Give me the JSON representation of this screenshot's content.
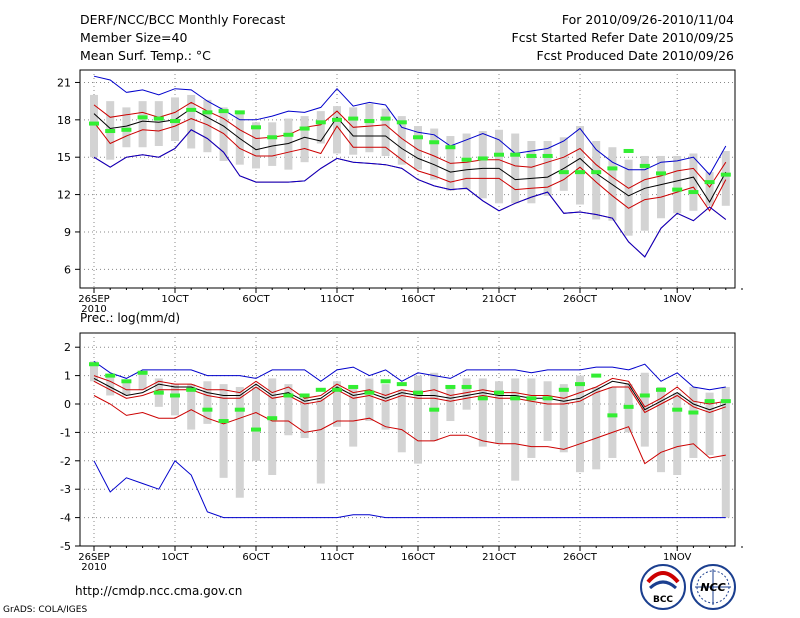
{
  "header": {
    "title": "DERF/NCC/BCC Monthly Forecast",
    "member_size": "Member Size=40",
    "variable": "Mean Surf. Temp.: °C",
    "period": "For 2010/09/26-2010/11/04",
    "start_date": "Fcst Started Refer Date 2010/09/25",
    "produced_date": "Fcst Produced Date 2010/09/26"
  },
  "footer": {
    "url": "http://cmdp.ncc.cma.gov.cn",
    "grads": "GrADS: COLA/IGES",
    "logo_bcc": "BCC",
    "logo_ncc": "NCC"
  },
  "colors": {
    "box": "#d3d3d3",
    "mean": "#000000",
    "spread": "#cc0000",
    "extreme": "#0000cc",
    "clim": "#33ee33",
    "grid": "#888888"
  },
  "chart_data": [
    {
      "type": "box",
      "name": "temperature",
      "title": "Mean Surf. Temp.: °C",
      "xlabel": "",
      "ylabel": "",
      "ylim": [
        4.5,
        22
      ],
      "yticks": [
        6,
        9,
        12,
        15,
        18,
        21
      ],
      "day0": 0,
      "xmax": 40,
      "xticks": [
        {
          "day": 0,
          "label": "26SEP",
          "sub": "2010"
        },
        {
          "day": 5,
          "label": "1OCT"
        },
        {
          "day": 10,
          "label": "6OCT"
        },
        {
          "day": 15,
          "label": "11OCT"
        },
        {
          "day": 20,
          "label": "16OCT"
        },
        {
          "day": 25,
          "label": "21OCT"
        },
        {
          "day": 30,
          "label": "26OCT"
        },
        {
          "day": 36,
          "label": "1NOV"
        }
      ],
      "grid": true,
      "series": [
        {
          "name": "box_high",
          "values": [
            20,
            19.5,
            19,
            19.5,
            19.5,
            19.8,
            20,
            19.6,
            19,
            18.5,
            17.8,
            17.8,
            18.1,
            18.3,
            18.7,
            19.1,
            19,
            19.3,
            18.9,
            18.3,
            17.5,
            17.3,
            16.7,
            16.9,
            17.1,
            17.2,
            16.9,
            16.3,
            16.3,
            16.6,
            17.5,
            16.3,
            15.8,
            14.8,
            15.1,
            15.1,
            15.1,
            15.3,
            13.8,
            15.5
          ]
        },
        {
          "name": "box_low",
          "values": [
            15,
            14.8,
            15.8,
            15.8,
            15.9,
            16.3,
            15.7,
            15.4,
            14.7,
            14.4,
            14.1,
            14.3,
            14,
            14.6,
            16.1,
            15.3,
            15.2,
            15.4,
            15.1,
            14.4,
            14,
            13.2,
            12.3,
            12.4,
            11.7,
            11.3,
            11.3,
            11.3,
            11.9,
            12.3,
            11.2,
            10,
            9.9,
            8.7,
            9.1,
            10.1,
            10.5,
            10.7,
            11.1,
            11.1
          ]
        },
        {
          "name": "ens_max",
          "values": [
            21.5,
            21.2,
            20.2,
            20.4,
            20,
            20.5,
            20.4,
            19.5,
            18.8,
            18,
            18,
            18.3,
            18.7,
            18.6,
            19,
            20.5,
            19.1,
            19.4,
            19.2,
            17.4,
            17,
            16.8,
            15.9,
            16.4,
            16.9,
            16.4,
            15.3,
            15.5,
            15.7,
            16.3,
            17.3,
            15.6,
            14.6,
            14,
            14,
            14.6,
            14.7,
            15,
            13.6,
            15.9
          ]
        },
        {
          "name": "spread_high",
          "values": [
            19.2,
            18.2,
            18.4,
            18.6,
            18.2,
            18.6,
            19.4,
            18.7,
            18.1,
            17.2,
            16.5,
            16.6,
            16.8,
            17.4,
            17.6,
            18.7,
            17.4,
            17.5,
            17.6,
            16.5,
            15.6,
            15.1,
            14.5,
            14.6,
            14.8,
            14.8,
            14.3,
            14.2,
            14.6,
            15,
            15.7,
            14.4,
            13.4,
            12.5,
            13.2,
            13.5,
            13.9,
            14.1,
            12.6,
            14.6
          ]
        },
        {
          "name": "ens_mean",
          "values": [
            18.5,
            17.3,
            17.5,
            17.9,
            17.8,
            18,
            18.9,
            18.2,
            17.5,
            16.5,
            15.6,
            15.9,
            16.1,
            16.6,
            16.3,
            18.2,
            16.7,
            16.7,
            16.7,
            15.7,
            14.9,
            14.4,
            13.8,
            14,
            14.1,
            14.1,
            13.2,
            13.3,
            13.4,
            14.1,
            14.9,
            13.7,
            12.8,
            11.9,
            12.5,
            12.8,
            13.1,
            13.4,
            11.4,
            13.8
          ]
        },
        {
          "name": "spread_low",
          "values": [
            17.8,
            16.1,
            16.7,
            17.2,
            17.1,
            17.5,
            18.1,
            17.6,
            16.9,
            15.7,
            15.1,
            15.1,
            15.4,
            15.7,
            15.3,
            17.5,
            15.8,
            15.8,
            15.8,
            14.8,
            13.9,
            13.5,
            13,
            13.3,
            13.3,
            13.3,
            12.4,
            12.5,
            12.6,
            13.2,
            14.2,
            13,
            11.9,
            10.9,
            11.6,
            11.8,
            12.2,
            12.6,
            10.7,
            13.2
          ]
        },
        {
          "name": "ens_min",
          "values": [
            15,
            14.2,
            15,
            15.2,
            15,
            15.7,
            17.2,
            16.5,
            15.4,
            13.5,
            13,
            13,
            13,
            13.1,
            14.1,
            14.9,
            14.6,
            14.5,
            14.4,
            14.1,
            13.2,
            12.7,
            12.4,
            12.5,
            11.5,
            10.7,
            11.3,
            11.8,
            12.2,
            10.5,
            10.6,
            10.4,
            10.1,
            8.2,
            7,
            9.3,
            10.5,
            9.9,
            11,
            10
          ]
        },
        {
          "name": "climate",
          "values": [
            17.7,
            17.1,
            17.2,
            18.2,
            18.1,
            17.9,
            18.8,
            18.6,
            18.7,
            18.6,
            17.4,
            16.6,
            16.8,
            17.3,
            17.8,
            18,
            18.1,
            17.9,
            18.1,
            17.8,
            16.6,
            16.2,
            15.8,
            14.8,
            14.9,
            15.2,
            15.2,
            15.1,
            15.1,
            13.8,
            13.8,
            13.8,
            14.1,
            15.5,
            14.3,
            13.7,
            12.4,
            12.2,
            13,
            13.6
          ]
        }
      ]
    },
    {
      "type": "box",
      "name": "precipitation",
      "title": "Prec.: log(mm/d)",
      "xlabel": "",
      "ylabel": "",
      "ylim": [
        -5,
        2.5
      ],
      "yticks": [
        -5,
        -4,
        -3,
        -2,
        -1,
        0,
        1,
        2
      ],
      "day0": 0,
      "xmax": 40,
      "xticks": [
        {
          "day": 0,
          "label": "26SEP",
          "sub": "2010"
        },
        {
          "day": 5,
          "label": "1OCT"
        },
        {
          "day": 10,
          "label": "6OCT"
        },
        {
          "day": 15,
          "label": "11OCT"
        },
        {
          "day": 20,
          "label": "16OCT"
        },
        {
          "day": 25,
          "label": "21OCT"
        },
        {
          "day": 30,
          "label": "26OCT"
        },
        {
          "day": 36,
          "label": "1NOV"
        }
      ],
      "grid": true,
      "series": [
        {
          "name": "box_high",
          "values": [
            1.5,
            1,
            0.8,
            1.1,
            0.9,
            0.7,
            0.7,
            0.8,
            0.7,
            0.6,
            0.6,
            0.9,
            0.7,
            0.2,
            0.2,
            0.8,
            0.6,
            0.9,
            0.7,
            0.5,
            1,
            1.1,
            0.6,
            0.9,
            0.9,
            0.8,
            0.9,
            0.9,
            0.8,
            0.7,
            1,
            0.6,
            0.6,
            0.7,
            1.1,
            0.6,
            0.4,
            0.6,
            0.4,
            0.6
          ]
        },
        {
          "name": "box_low",
          "values": [
            0.8,
            0.3,
            0.3,
            0.5,
            -0.1,
            -0.4,
            -0.9,
            -0.7,
            -2.6,
            -3.3,
            -2,
            -2.5,
            -1.1,
            -1.2,
            -2.8,
            -0.8,
            -1.5,
            -0.6,
            -0.9,
            -1.7,
            -2.1,
            -1.3,
            -0.6,
            -0.2,
            -1.5,
            -1.4,
            -2.7,
            -1.9,
            -1.3,
            -1.7,
            -2.4,
            -2.3,
            -1.9,
            -1,
            -1.5,
            -2.4,
            -2.5,
            -1.9,
            -1.8,
            -4
          ]
        },
        {
          "name": "ens_max",
          "values": [
            1.5,
            1.1,
            0.9,
            1.2,
            1.2,
            1.2,
            1.2,
            1,
            1,
            1,
            0.9,
            1.2,
            1.2,
            1.2,
            0.8,
            1.2,
            1.3,
            1,
            1.2,
            0.8,
            1.1,
            1,
            0.9,
            1.2,
            1.2,
            1.2,
            1.2,
            1.1,
            1.2,
            1.2,
            1.2,
            1.3,
            1.3,
            1.2,
            1.4,
            0.8,
            1.1,
            0.6,
            0.5,
            0.6
          ]
        },
        {
          "name": "spread_high",
          "values": [
            1,
            0.8,
            0.5,
            0.5,
            0.8,
            0.7,
            0.7,
            0.5,
            0.5,
            0.4,
            0.8,
            0.4,
            0.6,
            0.2,
            0.3,
            0.7,
            0.4,
            0.5,
            0.3,
            0.5,
            0.4,
            0.5,
            0.3,
            0.4,
            0.5,
            0.4,
            0.4,
            0.3,
            0.3,
            0.2,
            0.4,
            0.6,
            0.9,
            0.8,
            -0.1,
            0.2,
            0.6,
            0.1,
            0,
            0.1
          ]
        },
        {
          "name": "ens_mean",
          "values": [
            0.9,
            0.6,
            0.3,
            0.4,
            0.7,
            0.6,
            0.6,
            0.4,
            0.3,
            0.3,
            0.7,
            0.3,
            0.4,
            0.1,
            0.2,
            0.6,
            0.3,
            0.4,
            0.2,
            0.4,
            0.3,
            0.3,
            0.2,
            0.3,
            0.4,
            0.3,
            0.3,
            0.2,
            0.2,
            0.1,
            0.2,
            0.5,
            0.8,
            0.7,
            -0.2,
            0.1,
            0.4,
            0,
            -0.2,
            0
          ]
        },
        {
          "name": "spread_low",
          "values": [
            0.8,
            0.5,
            0.2,
            0.3,
            0.5,
            0.5,
            0.5,
            0.3,
            0.2,
            0.2,
            0.6,
            0.2,
            0.3,
            0,
            0.1,
            0.5,
            0.2,
            0.3,
            0.1,
            0.3,
            0.2,
            0.2,
            0.1,
            0.2,
            0.3,
            0.2,
            0.2,
            0.1,
            0,
            0,
            0.1,
            0.4,
            0.6,
            0.6,
            -0.3,
            0,
            0.3,
            -0.1,
            -0.3,
            -0.1
          ]
        },
        {
          "name": "ens_min",
          "values": [
            0.3,
            0,
            -0.4,
            -0.3,
            -0.5,
            -0.5,
            -0.2,
            -0.5,
            -0.7,
            -0.5,
            -0.3,
            -0.6,
            -0.6,
            -1,
            -0.9,
            -0.6,
            -0.6,
            -0.5,
            -0.8,
            -0.9,
            -1.3,
            -1.3,
            -1.1,
            -1.1,
            -1.3,
            -1.4,
            -1.4,
            -1.5,
            -1.5,
            -1.6,
            -1.4,
            -1.2,
            -1,
            -0.8,
            -2.1,
            -1.7,
            -1.5,
            -1.4,
            -1.9,
            -1.8
          ]
        },
        {
          "name": "ens_abs_min",
          "values": [
            -2,
            -3.1,
            -2.6,
            -2.8,
            -3,
            -2,
            -2.5,
            -3.8,
            -4,
            -4,
            -4,
            -4,
            -4,
            -4,
            -4,
            -4,
            -3.9,
            -3.9,
            -4,
            -4,
            -4,
            -4,
            -4,
            -4,
            -4,
            -4,
            -4,
            -4,
            -4,
            -4,
            -4,
            -4,
            -4,
            -4,
            -4,
            -4,
            -4,
            -4,
            -4,
            -4
          ]
        },
        {
          "name": "climate",
          "values": [
            1.4,
            1,
            0.8,
            1.1,
            0.4,
            0.3,
            0.5,
            -0.2,
            -0.6,
            -0.2,
            -0.9,
            -0.5,
            0.3,
            0.3,
            0.5,
            0.5,
            0.6,
            0.4,
            0.8,
            0.7,
            0.4,
            -0.2,
            0.6,
            0.6,
            0.2,
            0.4,
            0.2,
            0.2,
            0.2,
            0.5,
            0.7,
            1,
            -0.4,
            -0.1,
            0.3,
            0.5,
            -0.2,
            -0.3,
            0.1,
            0.1
          ]
        }
      ]
    }
  ]
}
